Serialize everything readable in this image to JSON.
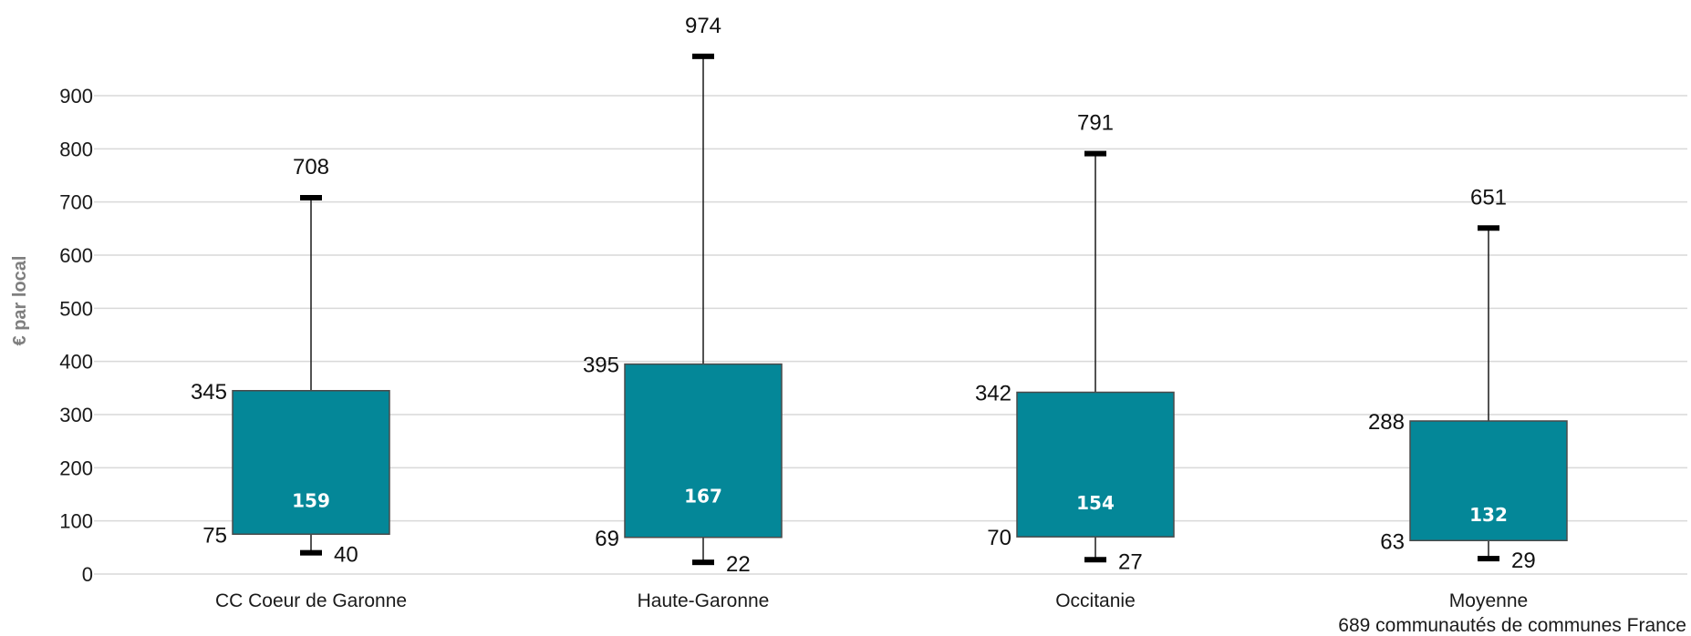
{
  "chart_data": {
    "type": "box",
    "ylabel": "€ par local",
    "ylim": [
      0,
      1000
    ],
    "yticks": [
      0,
      100,
      200,
      300,
      400,
      500,
      600,
      700,
      800,
      900
    ],
    "grid": true,
    "colors": {
      "box": "#048798",
      "box_edge": "#4a4a4a",
      "grid": "#d9d9d9",
      "whisker": "#1a1a1a"
    },
    "categories": [
      {
        "label": [
          "CC Coeur de Garonne"
        ],
        "min": 40,
        "q1": 75,
        "median": 159,
        "q3": 345,
        "max": 708
      },
      {
        "label": [
          "Haute-Garonne"
        ],
        "min": 22,
        "q1": 69,
        "median": 167,
        "q3": 395,
        "max": 974
      },
      {
        "label": [
          "Occitanie"
        ],
        "min": 27,
        "q1": 70,
        "median": 154,
        "q3": 342,
        "max": 791
      },
      {
        "label": [
          "Moyenne",
          "689 communautés de communes France"
        ],
        "min": 29,
        "q1": 63,
        "median": 132,
        "q3": 288,
        "max": 651
      }
    ]
  }
}
